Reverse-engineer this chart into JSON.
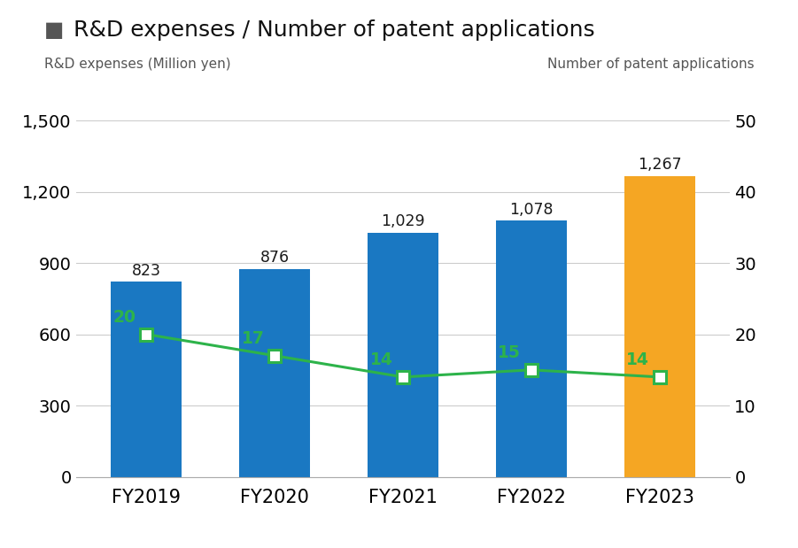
{
  "categories": [
    "FY2019",
    "FY2020",
    "FY2021",
    "FY2022",
    "FY2023"
  ],
  "bar_values": [
    823,
    876,
    1029,
    1078,
    1267
  ],
  "bar_colors": [
    "#1a78c2",
    "#1a78c2",
    "#1a78c2",
    "#1a78c2",
    "#f5a623"
  ],
  "line_values": [
    20,
    17,
    14,
    15,
    14
  ],
  "title": "R&D expenses / Number of patent applications",
  "left_label": "R&D expenses (Million yen)",
  "right_label": "Number of patent applications",
  "ylim_left": [
    0,
    1500
  ],
  "ylim_right": [
    0,
    50
  ],
  "yticks_left": [
    0,
    300,
    600,
    900,
    1200,
    1500
  ],
  "yticks_right": [
    0,
    10,
    20,
    30,
    40,
    50
  ],
  "line_color": "#2db34a",
  "marker_face": "#ffffff",
  "bg_color": "#ffffff",
  "title_square_color": "#555555",
  "bar_label_color": "#1a1a1a",
  "line_label_color": "#2db34a"
}
